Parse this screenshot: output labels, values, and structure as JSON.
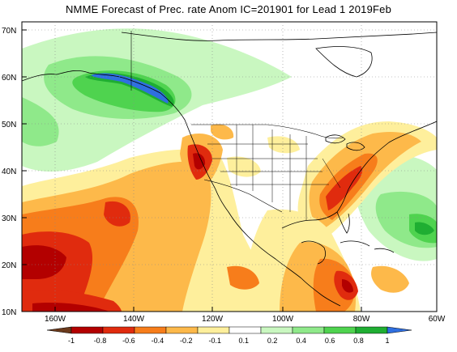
{
  "title": "NMME Forecast of Prec. rate Anom IC=201901 for Lead 1 2019Feb",
  "lat_labels": [
    "70N",
    "60N",
    "50N",
    "40N",
    "30N",
    "20N",
    "10N"
  ],
  "lon_labels": [
    "160W",
    "140W",
    "120W",
    "100W",
    "80W",
    "60W"
  ],
  "colorbar": {
    "labels": [
      "-1",
      "-0.8",
      "-0.6",
      "-0.4",
      "-0.2",
      "-0.1",
      "0.1",
      "0.2",
      "0.4",
      "0.6",
      "0.8",
      "1"
    ],
    "colors": [
      "#6b3a1c",
      "#b30000",
      "#e02b0e",
      "#f77d1b",
      "#fdb94a",
      "#feef9c",
      "#ffffff",
      "#c9f7c0",
      "#8fe98a",
      "#4fd34f",
      "#1fae32",
      "#2f6fe0"
    ]
  }
}
